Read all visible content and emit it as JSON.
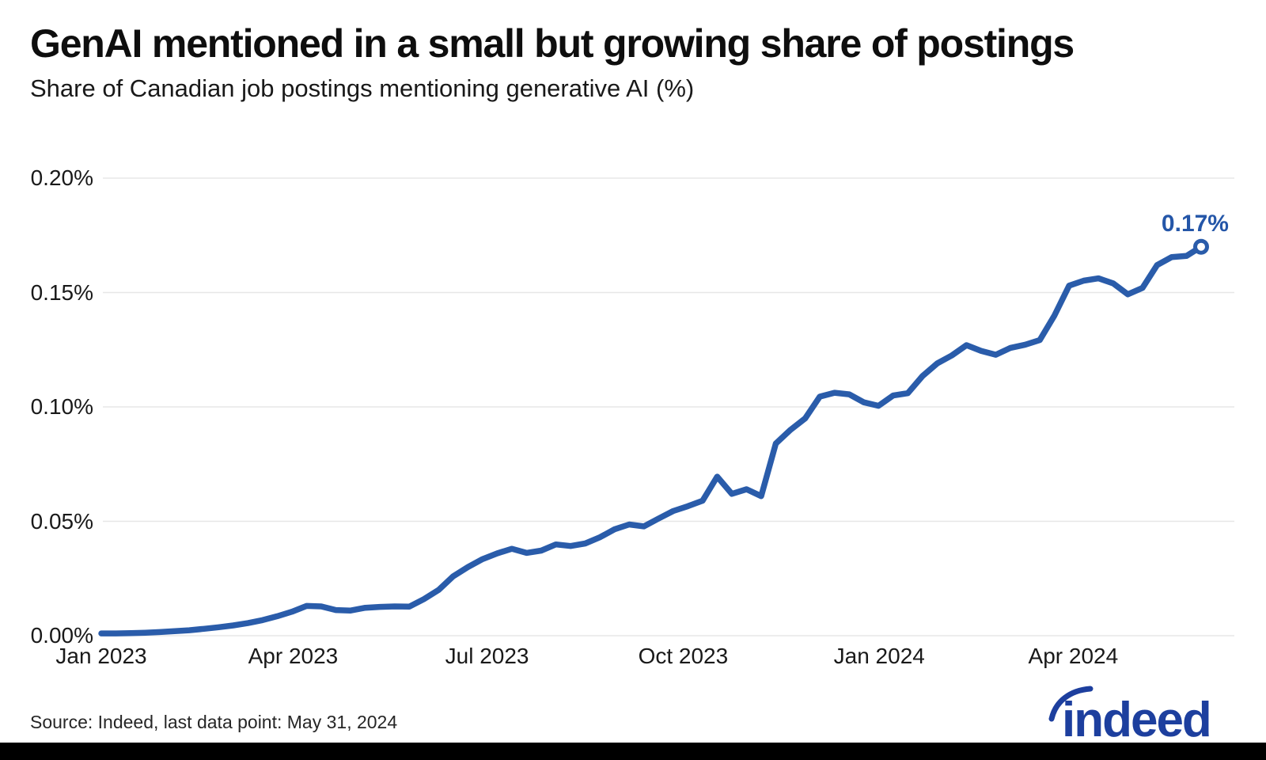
{
  "header": {
    "title": "GenAI mentioned in a small but growing share of postings",
    "subtitle": "Share of Canadian job postings mentioning generative AI (%)"
  },
  "chart": {
    "line_color": "#2a5caa",
    "grid_color": "#e7e7e7",
    "annotation_color": "#2456a8",
    "marker_fill": "#ffffff"
  },
  "chart_data": {
    "type": "line",
    "title": "GenAI mentioned in a small but growing share of postings",
    "ylabel": "Share of Canadian job postings mentioning generative AI (%)",
    "unit": "percent",
    "frequency": "weekly",
    "x_start": "2023-01-01",
    "x_end": "2024-05-31",
    "ylim": [
      0,
      0.2
    ],
    "grid": true,
    "y_tick_labels": [
      "0.20%",
      "0.15%",
      "0.10%",
      "0.05%",
      "0.00%"
    ],
    "y_tick_values": [
      0.2,
      0.15,
      0.1,
      0.05,
      0.0
    ],
    "x_tick_labels": [
      "Jan 2023",
      "Apr 2023",
      "Jul 2023",
      "Oct 2023",
      "Jan 2024",
      "Apr 2024"
    ],
    "x_tick_day_offsets": [
      0,
      90,
      181,
      273,
      365,
      456
    ],
    "series": [
      {
        "name": "Share of Canadian job postings mentioning generative AI (%)",
        "values": [
          0.001,
          0.001,
          0.0011,
          0.0013,
          0.0016,
          0.002,
          0.0024,
          0.003,
          0.0037,
          0.0045,
          0.0055,
          0.0068,
          0.0085,
          0.0105,
          0.013,
          0.0128,
          0.0112,
          0.011,
          0.0122,
          0.0126,
          0.0128,
          0.0127,
          0.016,
          0.02,
          0.026,
          0.03,
          0.0335,
          0.036,
          0.038,
          0.0362,
          0.0372,
          0.0399,
          0.0392,
          0.0403,
          0.043,
          0.0465,
          0.0486,
          0.0478,
          0.0512,
          0.0545,
          0.0566,
          0.059,
          0.0695,
          0.062,
          0.064,
          0.061,
          0.084,
          0.09,
          0.095,
          0.1045,
          0.1062,
          0.1055,
          0.102,
          0.1005,
          0.105,
          0.106,
          0.1135,
          0.119,
          0.1225,
          0.127,
          0.1245,
          0.1228,
          0.1258,
          0.1272,
          0.1292,
          0.14,
          0.153,
          0.1552,
          0.1562,
          0.154,
          0.1492,
          0.152,
          0.162,
          0.1655,
          0.166,
          0.17
        ]
      }
    ],
    "annotation": {
      "text": "0.17%",
      "value": 0.17
    }
  },
  "footer": {
    "source": "Source: Indeed, last data point: May 31, 2024",
    "logo_text": "indeed"
  }
}
